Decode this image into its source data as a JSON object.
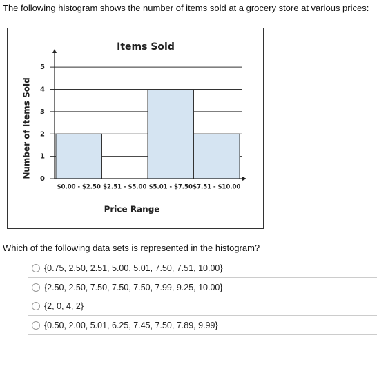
{
  "question": "The following histogram shows the number of items sold at a grocery store at various prices:",
  "chart_data": {
    "type": "bar",
    "title": "Items Sold",
    "x_label": "Price Range",
    "y_label": "Number of Items Sold",
    "categories": [
      "$0.00 - $2.50",
      "$2.51 - $5.00",
      "$5.01 - $7.50",
      "$7.51 - $10.00"
    ],
    "values": [
      2,
      0,
      4,
      2
    ],
    "color": "#d5e4f2",
    "ylim": [
      0,
      5.5
    ],
    "yticks": [
      0,
      1,
      2,
      3,
      4,
      5
    ],
    "grid": true
  },
  "prompt": "Which of the following data sets is represented in the histogram?",
  "options": [
    "{0.75, 2.50, 2.51, 5.00, 5.01, 7.50, 7.51, 10.00}",
    "{2.50, 2.50, 7.50, 7.50, 7.50, 7.99, 9.25, 10.00}",
    "{2, 0, 4, 2}",
    "{0.50, 2.00, 5.01, 6.25, 7.45, 7.50, 7.89, 9.99}"
  ]
}
